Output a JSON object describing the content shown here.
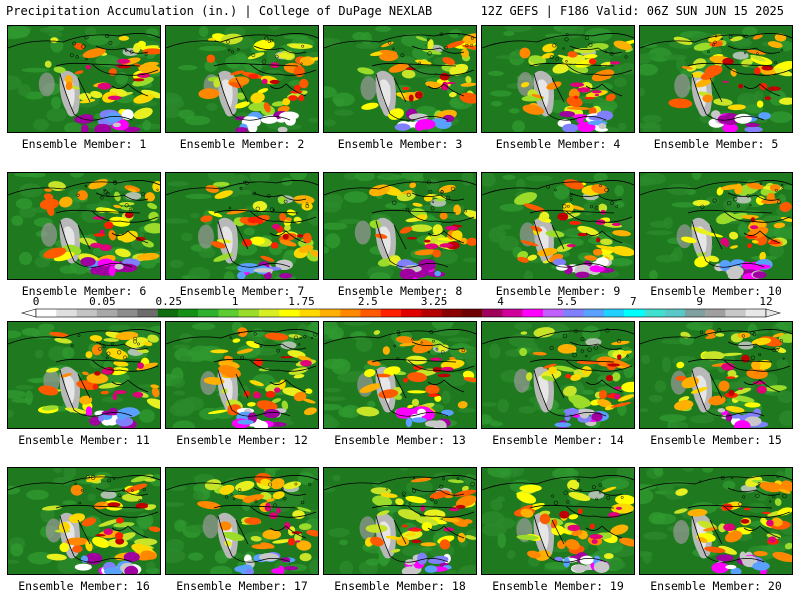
{
  "header": {
    "title": "Precipitation Accumulation (in.) | College of DuPage NEXLAB",
    "run_info": "12Z GEFS | F186 Valid: 06Z SUN JUN 15 2025"
  },
  "colorbar": {
    "tick_labels": [
      "0",
      "0.05",
      "0.25",
      "1",
      "1.75",
      "2.5",
      "3.25",
      "4",
      "5.5",
      "7",
      "9",
      "12"
    ],
    "colors": [
      "#ffffff",
      "#e0e0e0",
      "#c4c4c4",
      "#a8a8a8",
      "#8c8c8c",
      "#6c6c6c",
      "#0f6d0f",
      "#168f16",
      "#2fb02f",
      "#5ccc32",
      "#9bdc2a",
      "#d8ee24",
      "#ffff00",
      "#ffd800",
      "#ffb000",
      "#ff8800",
      "#ff5a00",
      "#ff2000",
      "#e00000",
      "#b40000",
      "#8a0000",
      "#6e0000",
      "#a0005a",
      "#d0009a",
      "#ff00ff",
      "#c060ff",
      "#8080ff",
      "#5aa0ff",
      "#20d0ff",
      "#00ffff",
      "#40e0d0",
      "#58c8c8",
      "#80a0a0",
      "#a0a0a0",
      "#c8c8c8",
      "#e8e8e8"
    ]
  },
  "members": [
    {
      "label": "Ensemble Member: 1"
    },
    {
      "label": "Ensemble Member: 2"
    },
    {
      "label": "Ensemble Member: 3"
    },
    {
      "label": "Ensemble Member: 4"
    },
    {
      "label": "Ensemble Member: 5"
    },
    {
      "label": "Ensemble Member: 6"
    },
    {
      "label": "Ensemble Member: 7"
    },
    {
      "label": "Ensemble Member: 8"
    },
    {
      "label": "Ensemble Member: 9"
    },
    {
      "label": "Ensemble Member: 10"
    },
    {
      "label": "Ensemble Member: 11"
    },
    {
      "label": "Ensemble Member: 12"
    },
    {
      "label": "Ensemble Member: 13"
    },
    {
      "label": "Ensemble Member: 14"
    },
    {
      "label": "Ensemble Member: 15"
    },
    {
      "label": "Ensemble Member: 16"
    },
    {
      "label": "Ensemble Member: 17"
    },
    {
      "label": "Ensemble Member: 18"
    },
    {
      "label": "Ensemble Member: 19"
    },
    {
      "label": "Ensemble Member: 20"
    }
  ]
}
